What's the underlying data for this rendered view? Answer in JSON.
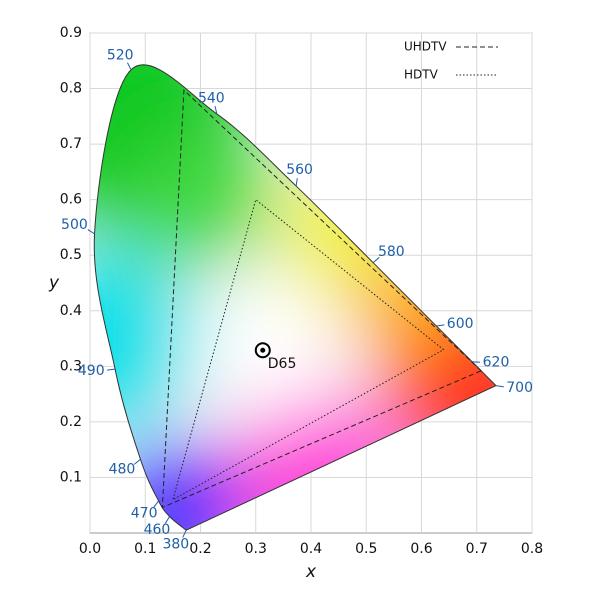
{
  "chart_data": {
    "type": "chromaticity",
    "xlabel": "x",
    "ylabel": "y",
    "xlim": [
      0,
      0.8
    ],
    "ylim": [
      0,
      0.9
    ],
    "xticks": [
      {
        "value": 0,
        "label": "0.0"
      },
      0.1,
      0.2,
      0.3,
      0.4,
      0.5,
      0.6,
      0.7,
      0.8
    ],
    "yticks": [
      0.1,
      0.2,
      0.3,
      0.4,
      0.5,
      0.6,
      0.7,
      0.8,
      0.9
    ],
    "grid": true,
    "legend": "upper right",
    "locus": {
      "color": "#1f5fa8",
      "labels": [
        "380",
        "460",
        "470",
        "480",
        "490",
        "500",
        "520",
        "540",
        "560",
        "580",
        "600",
        "620",
        "700"
      ],
      "x": [
        0.1741,
        0.144,
        0.1241,
        0.0913,
        0.0454,
        0.0082,
        0.0743,
        0.2296,
        0.3731,
        0.5125,
        0.627,
        0.6915,
        0.7347
      ],
      "y": [
        0.005,
        0.0297,
        0.0578,
        0.1327,
        0.295,
        0.5384,
        0.8338,
        0.7543,
        0.6245,
        0.4866,
        0.3725,
        0.3083,
        0.2653
      ]
    },
    "series": [
      {
        "name": "UHDTV",
        "style": "dashed",
        "color": "#222222",
        "x": [
          0.708,
          0.17,
          0.131
        ],
        "y": [
          0.292,
          0.797,
          0.046
        ]
      },
      {
        "name": "HDTV",
        "style": "dotted",
        "color": "#222222",
        "x": [
          0.64,
          0.3,
          0.15
        ],
        "y": [
          0.33,
          0.6,
          0.06
        ]
      }
    ],
    "points": [
      {
        "label": "D65",
        "x": 0.3127,
        "y": 0.329
      }
    ]
  }
}
